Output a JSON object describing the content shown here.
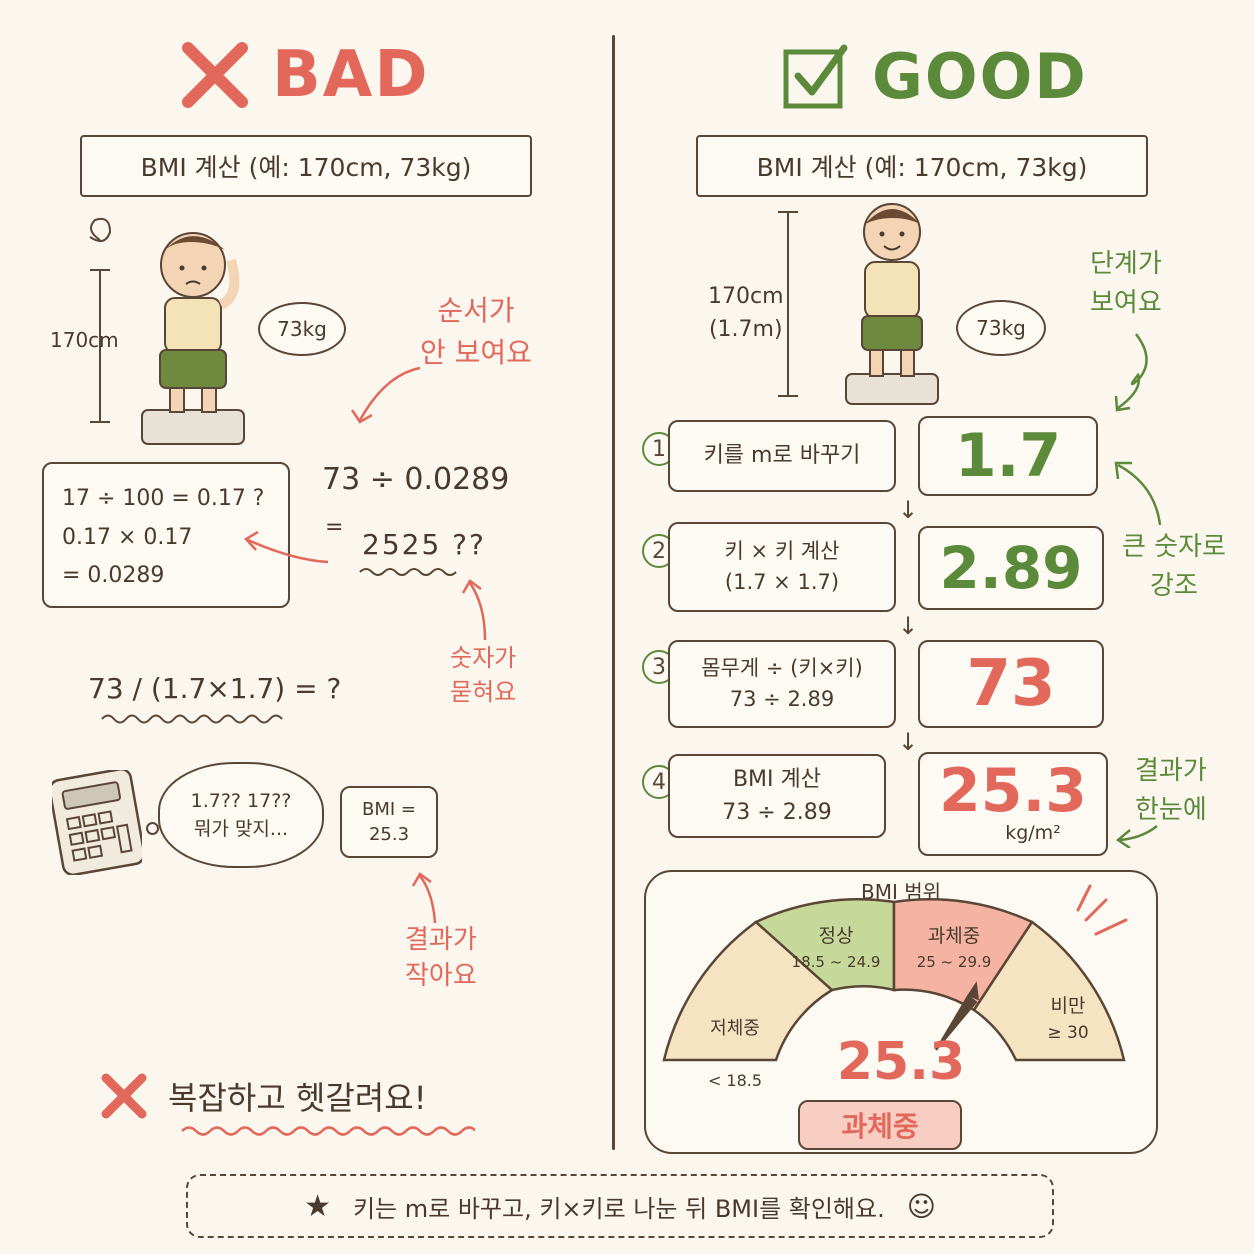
{
  "bad": {
    "heading": "BAD",
    "title": "BMI 계산 (예: 170cm, 73kg)",
    "height_label": "170cm",
    "weight_bubble": "73kg",
    "note_order": "순서가\n안 보여요",
    "calc_box": "17 ÷ 100 = 0.17 ?\n0.17 × 0.17\n= 0.0289",
    "division_top": "73 ÷ 0.0289",
    "division_eq": "=",
    "division_result": "2525 ??",
    "note_buried": "숫자가\n묻혀요",
    "formula": "73 / (1.7×1.7) = ?",
    "thought": "1.7?? 17??\n뭐가 맞지...",
    "result_box": "BMI =\n25.3",
    "note_small": "결과가\n작아요",
    "conclusion": "복잡하고 헷갈려요!"
  },
  "good": {
    "heading": "GOOD",
    "title": "BMI 계산 (예: 170cm, 73kg)",
    "height_label": "170cm\n(1.7m)",
    "weight_bubble": "73kg",
    "note_steps": "단계가\n보여요",
    "note_emphasis": "큰 숫자로\n강조",
    "note_result": "결과가\n한눈에",
    "steps": [
      {
        "num": "1",
        "label": "키를 m로 바꾸기",
        "value": "1.7"
      },
      {
        "num": "2",
        "label": "키 × 키 계산\n(1.7 × 1.7)",
        "value": "2.89"
      },
      {
        "num": "3",
        "label": "몸무게 ÷ (키×키)\n73 ÷ 2.89",
        "value": "73"
      },
      {
        "num": "4",
        "label": "BMI 계산\n73 ÷ 2.89",
        "value": "25.3",
        "unit": "kg/m²"
      }
    ],
    "gauge": {
      "title": "BMI 범위",
      "segments": [
        {
          "name": "저체중",
          "range": "< 18.5",
          "color": "#f6e3c2"
        },
        {
          "name": "정상",
          "range": "18.5 ~ 24.9",
          "color": "#c6d89a"
        },
        {
          "name": "과체중",
          "range": "25 ~ 29.9",
          "color": "#f5b3a4"
        },
        {
          "name": "비만",
          "range": "≥ 30",
          "color": "#f6e3c2"
        }
      ],
      "value": "25.3",
      "badge": "과체중"
    }
  },
  "footer": "키는 m로 바꾸고, 키×키로 나눈 뒤 BMI를 확인해요.",
  "colors": {
    "red": "#e2685c",
    "green": "#5b8a3a",
    "ink": "#5a4636",
    "paper": "#fbf7ee"
  }
}
